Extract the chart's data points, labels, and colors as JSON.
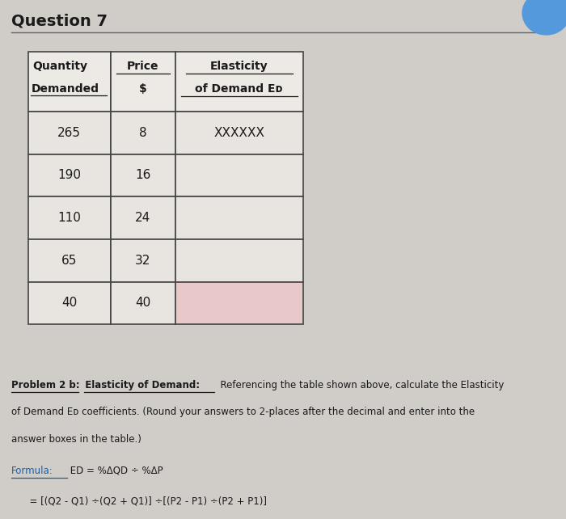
{
  "title": "Question 7",
  "background_color": "#d0ccc8",
  "table": {
    "rows": [
      [
        "265",
        "8",
        "XXXXXX"
      ],
      [
        "190",
        "16",
        ""
      ],
      [
        "110",
        "24",
        ""
      ],
      [
        "65",
        "32",
        ""
      ],
      [
        "40",
        "40",
        ""
      ]
    ]
  },
  "formula_color": "#1a5fa8",
  "text_color": "#1a1a1a",
  "table_bg_row_normal": "#e8e4df",
  "table_bg_row_last": "#e8c8c8",
  "table_border_color": "#444444",
  "header_bg": "#ede9e5"
}
